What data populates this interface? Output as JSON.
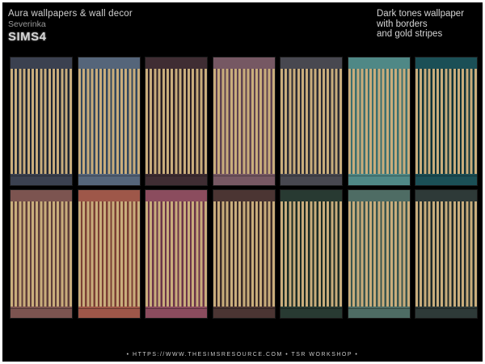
{
  "header": {
    "title": "Aura wallpapers & wall decor",
    "author": "Severinka",
    "logo": "SIMS4",
    "description_lines": [
      "Dark tones wallpaper",
      "with borders",
      "and gold stripes"
    ]
  },
  "stripe_color": "#c9ad7c",
  "swatches": [
    {
      "band": "#3b4150",
      "base": "#1e2533"
    },
    {
      "band": "#55657a",
      "base": "#33475d"
    },
    {
      "band": "#3f2d33",
      "base": "#2a1e24"
    },
    {
      "band": "#765863",
      "base": "#5e4250"
    },
    {
      "band": "#484850",
      "base": "#2b2b33"
    },
    {
      "band": "#4f8886",
      "base": "#3b6f6f"
    },
    {
      "band": "#1b4f56",
      "base": "#0f3338"
    },
    {
      "band": "#7c5450",
      "base": "#5e3d3a"
    },
    {
      "band": "#9e5749",
      "base": "#7b3f35"
    },
    {
      "band": "#8b4c5e",
      "base": "#6b3449"
    },
    {
      "band": "#4b3533",
      "base": "#3a2a28"
    },
    {
      "band": "#283a32",
      "base": "#1c2c25"
    },
    {
      "band": "#4e6c64",
      "base": "#3a554e"
    },
    {
      "band": "#2e3a38",
      "base": "#1f2a29"
    }
  ],
  "footer": {
    "text": "• HTTPS://WWW.THESIMSRESOURCE.COM • TSR WORKSHOP •"
  }
}
